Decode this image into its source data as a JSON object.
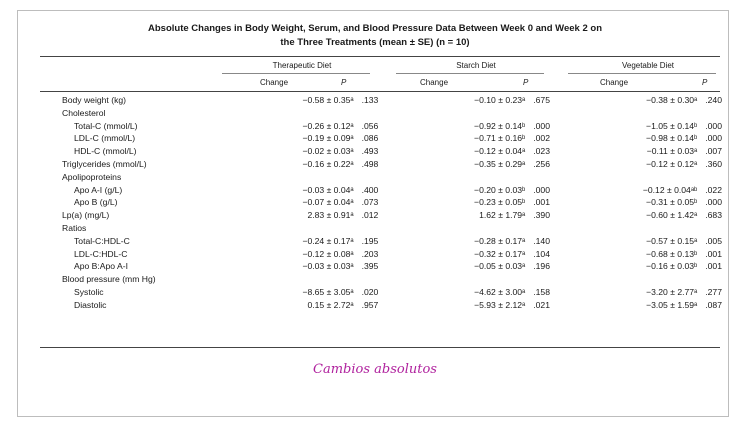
{
  "table": {
    "title_line1": "Absolute Changes in Body Weight, Serum, and Blood Pressure Data Between Week 0 and Week 2 on",
    "title_line2": "the Three Treatments (mean ± SE) (n = 10)",
    "groups": [
      "Therapeutic Diet",
      "Starch Diet",
      "Vegetable Diet"
    ],
    "sub_change": "Change",
    "sub_p": "P",
    "rows": [
      {
        "label": "Body weight (kg)",
        "indent": false,
        "c1": "−0.58 ± 0.35ᵃ",
        "p1": ".133",
        "c2": "−0.10 ± 0.23ᵃ",
        "p2": ".675",
        "c3": "−0.38 ± 0.30ᵃ",
        "p3": ".240"
      },
      {
        "label": "Cholesterol",
        "indent": false,
        "c1": "",
        "p1": "",
        "c2": "",
        "p2": "",
        "c3": "",
        "p3": ""
      },
      {
        "label": "Total-C (mmol/L)",
        "indent": true,
        "c1": "−0.26 ± 0.12ᵃ",
        "p1": ".056",
        "c2": "−0.92 ± 0.14ᵇ",
        "p2": ".000",
        "c3": "−1.05 ± 0.14ᵇ",
        "p3": ".000"
      },
      {
        "label": "LDL-C (mmol/L)",
        "indent": true,
        "c1": "−0.19 ± 0.09ᵃ",
        "p1": ".086",
        "c2": "−0.71 ± 0.16ᵇ",
        "p2": ".002",
        "c3": "−0.98 ± 0.14ᵇ",
        "p3": ".000"
      },
      {
        "label": "HDL-C (mmol/L)",
        "indent": true,
        "c1": "−0.02 ± 0.03ᵃ",
        "p1": ".493",
        "c2": "−0.12 ± 0.04ᵃ",
        "p2": ".023",
        "c3": "−0.11 ± 0.03ᵃ",
        "p3": ".007"
      },
      {
        "label": "Triglycerides (mmol/L)",
        "indent": false,
        "c1": "−0.16 ± 0.22ᵃ",
        "p1": ".498",
        "c2": "−0.35 ± 0.29ᵃ",
        "p2": ".256",
        "c3": "−0.12 ± 0.12ᵃ",
        "p3": ".360"
      },
      {
        "label": "Apolipoproteins",
        "indent": false,
        "c1": "",
        "p1": "",
        "c2": "",
        "p2": "",
        "c3": "",
        "p3": ""
      },
      {
        "label": "Apo A-I (g/L)",
        "indent": true,
        "c1": "−0.03 ± 0.04ᵃ",
        "p1": ".400",
        "c2": "−0.20 ± 0.03ᵇ",
        "p2": ".000",
        "c3": "−0.12 ± 0.04ᵃᵇ",
        "p3": ".022"
      },
      {
        "label": "Apo B (g/L)",
        "indent": true,
        "c1": "−0.07 ± 0.04ᵃ",
        "p1": ".073",
        "c2": "−0.23 ± 0.05ᵇ",
        "p2": ".001",
        "c3": "−0.31 ± 0.05ᵇ",
        "p3": ".000"
      },
      {
        "label": "Lp(a) (mg/L)",
        "indent": false,
        "c1": "2.83 ± 0.91ᵃ",
        "p1": ".012",
        "c2": "1.62 ± 1.79ᵃ",
        "p2": ".390",
        "c3": "−0.60 ± 1.42ᵃ",
        "p3": ".683"
      },
      {
        "label": "Ratios",
        "indent": false,
        "c1": "",
        "p1": "",
        "c2": "",
        "p2": "",
        "c3": "",
        "p3": ""
      },
      {
        "label": "Total-C:HDL-C",
        "indent": true,
        "c1": "−0.24 ± 0.17ᵃ",
        "p1": ".195",
        "c2": "−0.28 ± 0.17ᵃ",
        "p2": ".140",
        "c3": "−0.57 ± 0.15ᵃ",
        "p3": ".005"
      },
      {
        "label": "LDL-C:HDL-C",
        "indent": true,
        "c1": "−0.12 ± 0.08ᵃ",
        "p1": ".203",
        "c2": "−0.32 ± 0.17ᵃ",
        "p2": ".104",
        "c3": "−0.68 ± 0.13ᵇ",
        "p3": ".001"
      },
      {
        "label": "Apo B:Apo A-I",
        "indent": true,
        "c1": "−0.03 ± 0.03ᵃ",
        "p1": ".395",
        "c2": "−0.05 ± 0.03ᵃ",
        "p2": ".196",
        "c3": "−0.16 ± 0.03ᵇ",
        "p3": ".001"
      },
      {
        "label": "Blood pressure (mm Hg)",
        "indent": false,
        "c1": "",
        "p1": "",
        "c2": "",
        "p2": "",
        "c3": "",
        "p3": ""
      },
      {
        "label": "Systolic",
        "indent": true,
        "c1": "−8.65 ± 3.05ᵃ",
        "p1": ".020",
        "c2": "−4.62 ± 3.00ᵃ",
        "p2": ".158",
        "c3": "−3.20 ± 2.77ᵃ",
        "p3": ".277"
      },
      {
        "label": "Diastolic",
        "indent": true,
        "c1": "0.15 ± 2.72ᵃ",
        "p1": ".957",
        "c2": "−5.93 ± 2.12ᵃ",
        "p2": ".021",
        "c3": "−3.05 ± 1.59ᵃ",
        "p3": ".087"
      }
    ]
  },
  "caption": "Cambios absolutos"
}
